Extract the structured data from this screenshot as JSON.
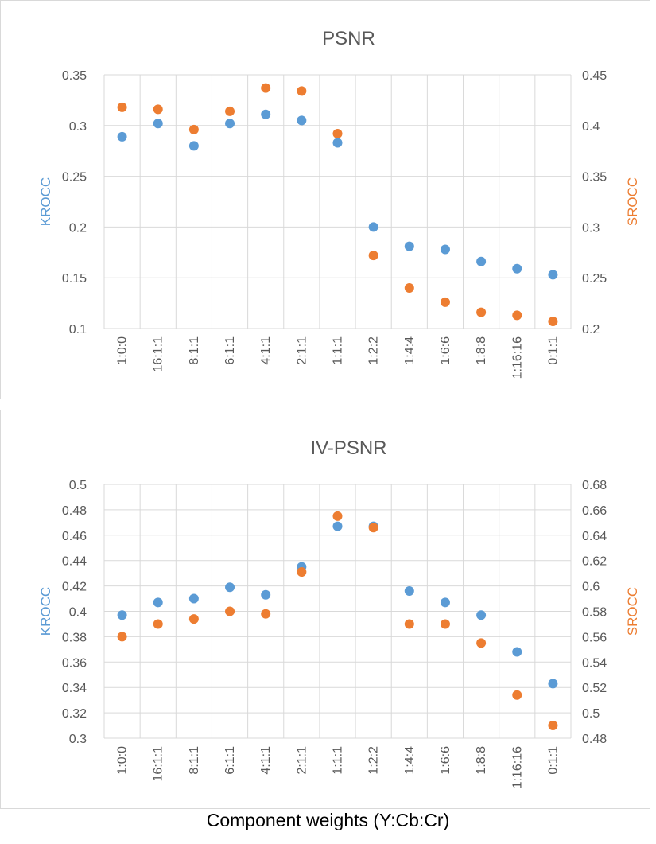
{
  "caption": "Component weights (Y:Cb:Cr)",
  "colors": {
    "krocc": "#5b9bd5",
    "srocc": "#ed7d31",
    "grid": "#d9d9d9",
    "text": "#595959"
  },
  "chart_data": [
    {
      "type": "scatter",
      "title": "PSNR",
      "categories": [
        "1:0:0",
        "16:1:1",
        "8:1:1",
        "6:1:1",
        "4:1:1",
        "2:1:1",
        "1:1:1",
        "1:2:2",
        "1:4:4",
        "1:6:6",
        "1:8:8",
        "1:16:16",
        "0:1:1"
      ],
      "y_left_label": "KROCC",
      "y_right_label": "SROCC",
      "y_left_ticks": [
        "0.1",
        "0.15",
        "0.2",
        "0.25",
        "0.3",
        "0.35"
      ],
      "y_right_ticks": [
        "0.2",
        "0.25",
        "0.3",
        "0.35",
        "0.4",
        "0.45"
      ],
      "y_left_range": [
        0.1,
        0.35
      ],
      "y_right_range": [
        0.2,
        0.45
      ],
      "grid": true,
      "series": [
        {
          "name": "KROCC",
          "axis": "left",
          "values": [
            0.289,
            0.302,
            0.28,
            0.302,
            0.311,
            0.305,
            0.283,
            0.2,
            0.181,
            0.178,
            0.166,
            0.159,
            0.153
          ]
        },
        {
          "name": "SROCC",
          "axis": "right",
          "values": [
            0.418,
            0.416,
            0.396,
            0.414,
            0.437,
            0.434,
            0.392,
            0.272,
            0.24,
            0.226,
            0.216,
            0.213,
            0.207
          ]
        }
      ]
    },
    {
      "type": "scatter",
      "title": "IV-PSNR",
      "categories": [
        "1:0:0",
        "16:1:1",
        "8:1:1",
        "6:1:1",
        "4:1:1",
        "2:1:1",
        "1:1:1",
        "1:2:2",
        "1:4:4",
        "1:6:6",
        "1:8:8",
        "1:16:16",
        "0:1:1"
      ],
      "y_left_label": "KROCC",
      "y_right_label": "SROCC",
      "y_left_ticks": [
        "0.3",
        "0.32",
        "0.34",
        "0.36",
        "0.38",
        "0.4",
        "0.42",
        "0.44",
        "0.46",
        "0.48",
        "0.5"
      ],
      "y_right_ticks": [
        "0.48",
        "0.5",
        "0.52",
        "0.54",
        "0.56",
        "0.58",
        "0.6",
        "0.62",
        "0.64",
        "0.66",
        "0.68"
      ],
      "y_left_range": [
        0.3,
        0.5
      ],
      "y_right_range": [
        0.48,
        0.68
      ],
      "grid": true,
      "series": [
        {
          "name": "KROCC",
          "axis": "left",
          "values": [
            0.397,
            0.407,
            0.41,
            0.419,
            0.413,
            0.435,
            0.467,
            0.467,
            0.416,
            0.407,
            0.397,
            0.368,
            0.343
          ]
        },
        {
          "name": "SROCC",
          "axis": "right",
          "values": [
            0.56,
            0.57,
            0.574,
            0.58,
            0.578,
            0.611,
            0.655,
            0.646,
            0.57,
            0.57,
            0.555,
            0.514,
            0.49
          ]
        }
      ]
    }
  ]
}
